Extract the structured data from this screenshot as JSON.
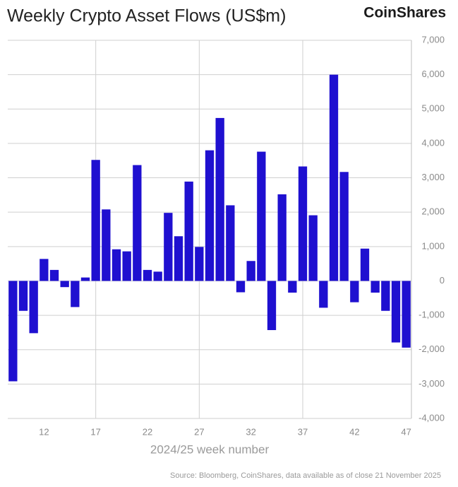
{
  "chart_data": {
    "type": "bar",
    "title": "Weekly Crypto Asset Flows (US$m)",
    "brand": "CoinShares",
    "x_label": "2024/25 week number",
    "source": "Source: Bloomberg, CoinShares, data available as of close 21 November 2025",
    "categories": [
      null,
      null,
      null,
      "12",
      null,
      null,
      null,
      null,
      "17",
      null,
      null,
      null,
      null,
      "22",
      null,
      null,
      null,
      null,
      "27",
      null,
      null,
      null,
      null,
      "32",
      null,
      null,
      null,
      null,
      "37",
      null,
      null,
      null,
      null,
      "42",
      null,
      null,
      null,
      null,
      "47"
    ],
    "values": [
      -2920,
      -870,
      -1520,
      640,
      320,
      -180,
      -760,
      100,
      3520,
      2080,
      920,
      860,
      3370,
      320,
      270,
      1980,
      1300,
      2890,
      990,
      3800,
      4740,
      2200,
      -330,
      580,
      3760,
      -1430,
      2520,
      -340,
      3330,
      1910,
      -780,
      6000,
      3170,
      -620,
      940,
      -340,
      -870,
      -1790,
      -1940
    ],
    "color": "#1f10d0",
    "ylim": [
      -4000,
      7000
    ],
    "yticks": [
      {
        "value": -4000,
        "label": "-4,000"
      },
      {
        "value": -3000,
        "label": "-3,000"
      },
      {
        "value": -2000,
        "label": "-2,000"
      },
      {
        "value": -1000,
        "label": "-1,000"
      },
      0,
      {
        "value": 1000,
        "label": "1,000"
      },
      {
        "value": 2000,
        "label": "2,000"
      },
      {
        "value": 3000,
        "label": "3,000"
      },
      {
        "value": 4000,
        "label": "4,000"
      },
      {
        "value": 5000,
        "label": "5,000"
      },
      {
        "value": 6000,
        "label": "6,000"
      },
      {
        "value": 7000,
        "label": "7,000"
      }
    ],
    "grid": true
  }
}
